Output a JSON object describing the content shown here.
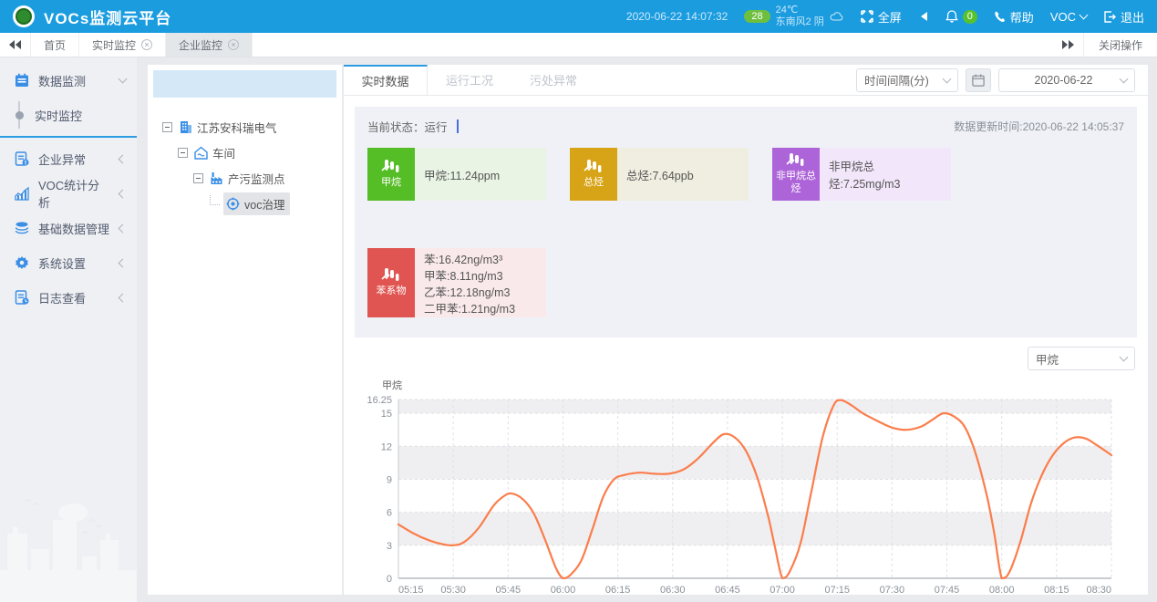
{
  "header": {
    "title": "VOCs监测云平台",
    "datetime": "2020-06-22 14:07:32",
    "aqi": "28",
    "temperature": "24℃",
    "weather": "东南风2 阴",
    "fullscreen_label": "全屏",
    "notification_count": "0",
    "help_label": "帮助",
    "user_label": "VOC",
    "logout_label": "退出"
  },
  "tabbar": {
    "tabs": [
      {
        "label": "首页"
      },
      {
        "label": "实时监控"
      },
      {
        "label": "企业监控"
      }
    ],
    "close_ops_label": "关闭操作"
  },
  "sidebar": {
    "items": [
      {
        "label": "数据监测"
      },
      {
        "label": "实时监控"
      },
      {
        "label": "企业异常"
      },
      {
        "label": "VOC统计分析"
      },
      {
        "label": "基础数据管理"
      },
      {
        "label": "系统设置"
      },
      {
        "label": "日志查看"
      }
    ]
  },
  "tree": {
    "nodes": [
      {
        "label": "江苏安科瑞电气"
      },
      {
        "label": "车间"
      },
      {
        "label": "产污监测点"
      },
      {
        "label": "voc治理"
      }
    ]
  },
  "main": {
    "tabs": [
      "实时数据",
      "运行工况",
      "污处异常"
    ],
    "interval_label": "时间间隔(分)",
    "date_value": "2020-06-22",
    "status_label": "当前状态：运行",
    "update_time": "数据更新时间:2020-06-22 14:05:37",
    "cards": [
      {
        "name": "甲烷",
        "color": "#55bd25",
        "bg": "#e9f4e4",
        "lines": [
          "甲烷:11.24ppm"
        ]
      },
      {
        "name": "总烃",
        "color": "#d8a417",
        "bg": "#f0eee0",
        "lines": [
          "总烃:7.64ppb"
        ]
      },
      {
        "name": "非甲烷总烃",
        "color": "#ad64d9",
        "bg": "#f2e6fa",
        "lines": [
          "非甲烷总烃:7.25mg/m3"
        ]
      },
      {
        "name": "苯系物",
        "color": "#e05551",
        "bg": "#f9e9ea",
        "lines": [
          "苯:16.42ng/m3³",
          "甲苯:8.11ng/m3",
          "乙苯:12.18ng/m3",
          "二甲苯:1.21ng/m3"
        ]
      }
    ],
    "chart_select": "甲烷"
  },
  "chart_data": {
    "type": "line",
    "title": "甲烷",
    "series_name": "甲烷",
    "line_color": "#fb7d4c",
    "band_color": "#efeff1",
    "legend_position": "none",
    "grid": "dashed",
    "ylim": [
      0,
      16.25
    ],
    "y_ticks": [
      0,
      3,
      6,
      9,
      12,
      15,
      16.25
    ],
    "x_ticks": [
      "05:15",
      "05:30",
      "05:45",
      "06:00",
      "06:15",
      "06:30",
      "06:45",
      "07:00",
      "07:15",
      "07:30",
      "07:45",
      "08:00",
      "08:15",
      "08:30"
    ],
    "x_tick_interval_min": 15,
    "x_range_minutes": 195,
    "points": [
      [
        0,
        4.9
      ],
      [
        4,
        4.1
      ],
      [
        8,
        3.5
      ],
      [
        12,
        3.1
      ],
      [
        15,
        3.0
      ],
      [
        18,
        3.3
      ],
      [
        22,
        4.6
      ],
      [
        26,
        6.6
      ],
      [
        29,
        7.5
      ],
      [
        31,
        7.7
      ],
      [
        34,
        7.2
      ],
      [
        37,
        5.9
      ],
      [
        40,
        3.6
      ],
      [
        43,
        1.0
      ],
      [
        45,
        0.0
      ],
      [
        47,
        0.3
      ],
      [
        50,
        1.6
      ],
      [
        53,
        4.4
      ],
      [
        56,
        7.4
      ],
      [
        59,
        9.0
      ],
      [
        62,
        9.4
      ],
      [
        66,
        9.6
      ],
      [
        70,
        9.5
      ],
      [
        74,
        9.5
      ],
      [
        78,
        9.9
      ],
      [
        82,
        10.9
      ],
      [
        86,
        12.3
      ],
      [
        89,
        13.1
      ],
      [
        92,
        12.8
      ],
      [
        95,
        11.6
      ],
      [
        98,
        9.3
      ],
      [
        101,
        5.8
      ],
      [
        103,
        2.8
      ],
      [
        105,
        0.0
      ],
      [
        107,
        0.6
      ],
      [
        110,
        3.2
      ],
      [
        113,
        8.0
      ],
      [
        116,
        12.8
      ],
      [
        119,
        15.7
      ],
      [
        121,
        16.2
      ],
      [
        124,
        15.7
      ],
      [
        127,
        15.0
      ],
      [
        131,
        14.3
      ],
      [
        135,
        13.7
      ],
      [
        139,
        13.5
      ],
      [
        143,
        13.8
      ],
      [
        146,
        14.4
      ],
      [
        149,
        15.0
      ],
      [
        152,
        14.7
      ],
      [
        155,
        13.7
      ],
      [
        158,
        11.2
      ],
      [
        161,
        7.4
      ],
      [
        163,
        4.0
      ],
      [
        165,
        0.0
      ],
      [
        167,
        0.5
      ],
      [
        170,
        3.2
      ],
      [
        173,
        6.8
      ],
      [
        176,
        9.4
      ],
      [
        179,
        11.2
      ],
      [
        182,
        12.3
      ],
      [
        185,
        12.8
      ],
      [
        188,
        12.7
      ],
      [
        191,
        12.1
      ],
      [
        195,
        11.2
      ]
    ]
  }
}
